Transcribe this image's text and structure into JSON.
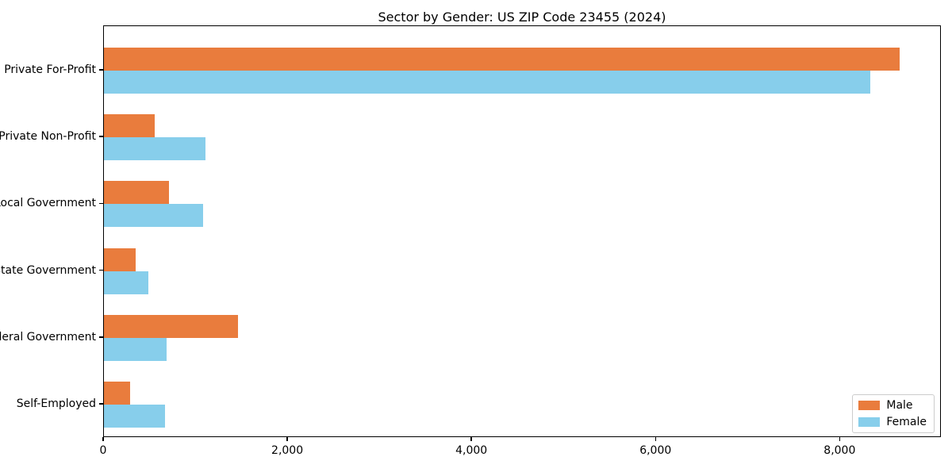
{
  "chart_data": {
    "type": "bar",
    "orientation": "horizontal",
    "title": "Sector by Gender: US ZIP Code 23455 (2024)",
    "categories": [
      "Private For-Profit",
      "Private Non-Profit",
      "Local Government",
      "State Government",
      "Federal Government",
      "Self-Employed"
    ],
    "series": [
      {
        "name": "Male",
        "color": "#e97c3d",
        "values": [
          8640,
          550,
          710,
          340,
          1460,
          280
        ]
      },
      {
        "name": "Female",
        "color": "#87ceeb",
        "values": [
          8320,
          1100,
          1080,
          480,
          680,
          660
        ]
      }
    ],
    "xlabel": "",
    "ylabel": "",
    "xlim": [
      0,
      9100
    ],
    "xticks": [
      0,
      2000,
      4000,
      6000,
      8000
    ],
    "xtick_labels": [
      "0",
      "2,000",
      "4,000",
      "6,000",
      "8,000"
    ],
    "grid": false,
    "legend": {
      "position": "lower right",
      "entries": [
        {
          "label": "Male",
          "color": "#e97c3d"
        },
        {
          "label": "Female",
          "color": "#87ceeb"
        }
      ]
    }
  }
}
